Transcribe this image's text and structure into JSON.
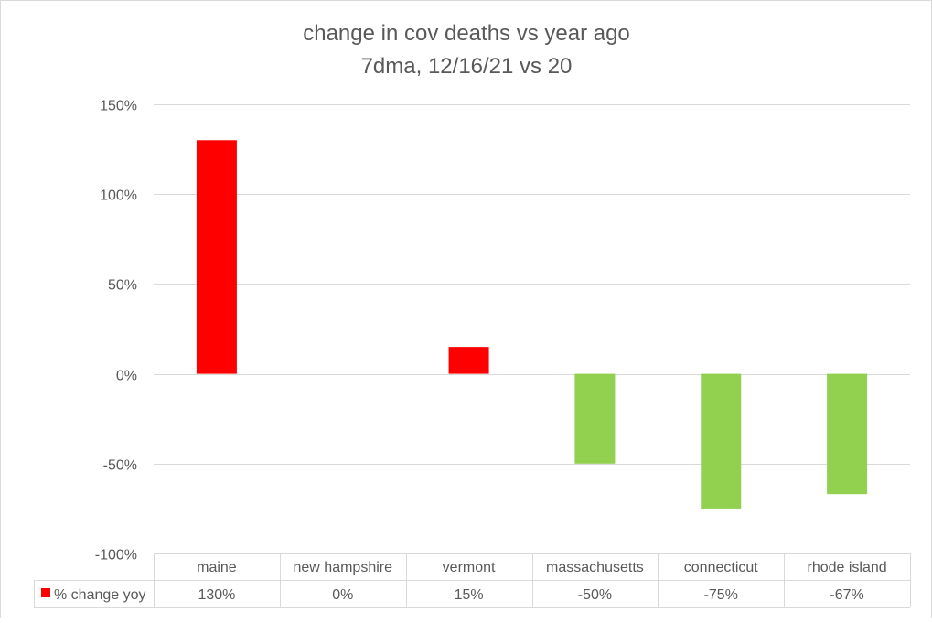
{
  "chart_data": {
    "type": "bar",
    "title": "change in cov deaths vs year ago",
    "subtitle": "7dma, 12/16/21 vs 20",
    "categories": [
      "maine",
      "new hampshire",
      "vermont",
      "massachusetts",
      "connecticut",
      "rhode island"
    ],
    "series": [
      {
        "name": "% change yoy",
        "values": [
          130,
          0,
          15,
          -50,
          -75,
          -67
        ],
        "labels": [
          "130%",
          "0%",
          "15%",
          "-50%",
          "-75%",
          "-67%"
        ]
      }
    ],
    "ylim": [
      -100,
      150
    ],
    "yticks": [
      150,
      100,
      50,
      0,
      -50,
      -100
    ],
    "ytick_labels": [
      "150%",
      "100%",
      "50%",
      "0%",
      "-50%",
      "-100%"
    ],
    "grid": true,
    "legend": "data-table",
    "colors": {
      "positive": "#ff0000",
      "negative": "#92d050",
      "legend_key": "#ff0000",
      "gridline": "#d9d9d9",
      "text": "#595959",
      "title": "#595959"
    }
  }
}
